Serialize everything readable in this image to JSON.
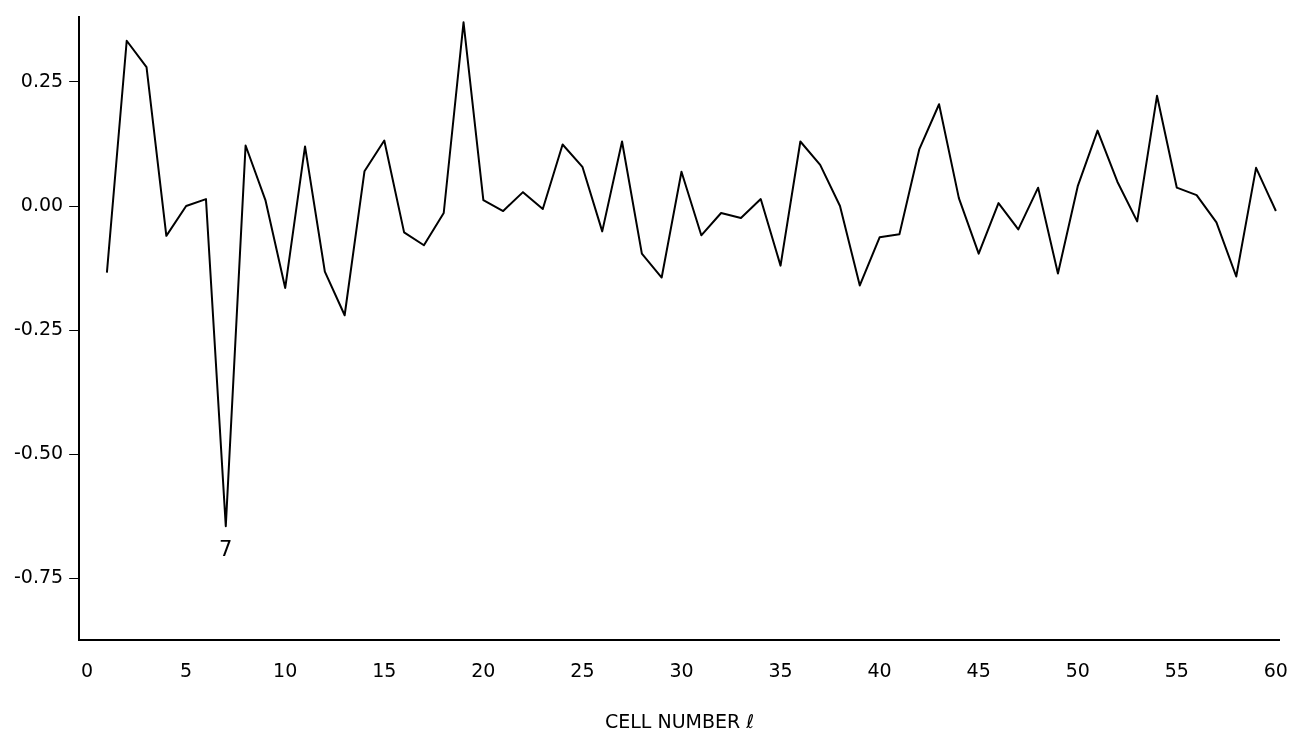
{
  "chart_data": {
    "type": "line",
    "xlabel": "CELL NUMBER ℓ",
    "x": [
      1,
      2,
      3,
      4,
      5,
      6,
      7,
      8,
      9,
      10,
      11,
      12,
      13,
      14,
      15,
      16,
      17,
      18,
      19,
      20,
      21,
      22,
      23,
      24,
      25,
      26,
      27,
      28,
      29,
      30,
      31,
      32,
      33,
      34,
      35,
      36,
      37,
      38,
      39,
      40,
      41,
      42,
      43,
      44,
      45,
      46,
      47,
      48,
      49,
      50,
      51,
      52,
      53,
      54,
      55,
      56,
      57,
      58,
      59,
      60
    ],
    "series": [
      {
        "color": "#000000",
        "values": [
          -0.134,
          0.333,
          0.28,
          -0.06,
          0.0,
          0.014,
          -0.645,
          0.122,
          0.012,
          -0.165,
          0.12,
          -0.132,
          -0.22,
          0.07,
          0.132,
          -0.053,
          -0.079,
          -0.014,
          0.37,
          0.012,
          -0.01,
          0.028,
          -0.006,
          0.124,
          0.079,
          -0.051,
          0.13,
          -0.096,
          -0.144,
          0.069,
          -0.059,
          -0.014,
          -0.024,
          0.014,
          -0.12,
          0.13,
          0.083,
          0.0,
          -0.16,
          -0.063,
          -0.057,
          0.114,
          0.205,
          0.016,
          -0.096,
          0.006,
          -0.047,
          0.037,
          -0.136,
          0.04,
          0.152,
          0.049,
          -0.031,
          0.222,
          0.037,
          0.022,
          -0.033,
          -0.142,
          0.077,
          -0.01
        ]
      }
    ],
    "xlim": [
      -0.4,
      60.2
    ],
    "xticks": [
      0,
      5,
      10,
      15,
      20,
      25,
      30,
      35,
      40,
      45,
      50,
      55,
      60
    ],
    "ylim": [
      -0.875,
      0.38
    ],
    "yticks": [
      0.25,
      {
        "value": 0,
        "label": "0.00"
      },
      -0.25,
      {
        "value": -0.5,
        "label": "-0.50"
      },
      -0.75
    ],
    "annotations": [
      {
        "text": "7",
        "x": 7,
        "y": -0.645
      }
    ],
    "grid": false,
    "legend": false,
    "marker": "none",
    "line_style": "solid"
  }
}
